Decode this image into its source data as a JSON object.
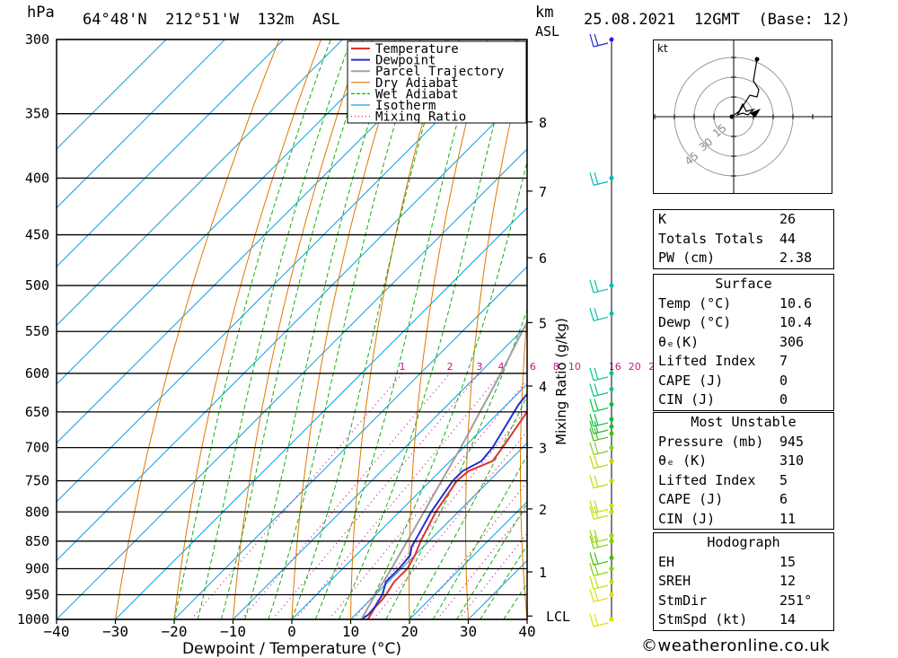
{
  "header": {
    "location": "64°48'N  212°51'W  132m  ASL",
    "datetime": "25.08.2021  12GMT  (Base: 12)",
    "hpa_unit": "hPa",
    "km_unit": "km",
    "asl_unit": "ASL"
  },
  "chart_data": {
    "type": "line",
    "xlabel": "Dewpoint / Temperature (°C)",
    "mixing_axis_label": "Mixing Ratio (g/kg)",
    "xlim": [
      -40,
      40
    ],
    "x_ticks": [
      "−40",
      "−30",
      "−20",
      "−10",
      "0",
      "10",
      "20",
      "30",
      "40"
    ],
    "pressure_ticks": [
      300,
      350,
      400,
      450,
      500,
      550,
      600,
      650,
      700,
      750,
      800,
      850,
      900,
      950,
      1000
    ],
    "km_ticks": [
      {
        "km": "1",
        "p": 906
      },
      {
        "km": "2",
        "p": 795
      },
      {
        "km": "3",
        "p": 700
      },
      {
        "km": "4",
        "p": 616
      },
      {
        "km": "5",
        "p": 540
      },
      {
        "km": "6",
        "p": 472
      },
      {
        "km": "7",
        "p": 411
      },
      {
        "km": "8",
        "p": 356
      }
    ],
    "lcl_label": "LCL",
    "lcl_pressure": 993,
    "mixing_ratio_labels": [
      "1",
      "2",
      "3",
      "4",
      "6",
      "8",
      "10",
      "16",
      "20",
      "25"
    ],
    "legend": [
      "Temperature",
      "Dewpoint",
      "Parcel Trajectory",
      "Dry Adiabat",
      "Wet Adiabat",
      "Isotherm",
      "Mixing Ratio"
    ],
    "colors": {
      "temperature": "#e23030",
      "dewpoint": "#2030d0",
      "parcel": "#a0a0a0",
      "dry_adiabat": "#e07800",
      "wet_adiabat": "#10b010",
      "isotherm": "#10a0e0",
      "mixing_ratio": "#d0108a"
    },
    "series": [
      {
        "name": "Temperature",
        "points": [
          [
            1000,
            12.9
          ],
          [
            990,
            12.6
          ],
          [
            975,
            12.1
          ],
          [
            960,
            12.0
          ],
          [
            950,
            11.8
          ],
          [
            925,
            11.0
          ],
          [
            900,
            11.0
          ],
          [
            875,
            10.0
          ],
          [
            850,
            8.6
          ],
          [
            800,
            6.2
          ],
          [
            750,
            4.5
          ],
          [
            735,
            4.8
          ],
          [
            720,
            7.2
          ],
          [
            700,
            6.6
          ],
          [
            650,
            4.7
          ],
          [
            600,
            2.0
          ],
          [
            580,
            0.3
          ],
          [
            575,
            1.2
          ],
          [
            560,
            1.8
          ],
          [
            550,
            1.0
          ],
          [
            500,
            -2.3
          ],
          [
            480,
            -3.5
          ],
          [
            450,
            -6.0
          ],
          [
            430,
            -8.0
          ],
          [
            415,
            -9.6
          ],
          [
            400,
            -9.6
          ],
          [
            380,
            -11.5
          ],
          [
            350,
            -15.0
          ],
          [
            320,
            -19.0
          ],
          [
            300,
            -21.0
          ]
        ]
      },
      {
        "name": "Dewpoint",
        "points": [
          [
            1000,
            11.8
          ],
          [
            990,
            12.2
          ],
          [
            975,
            12.0
          ],
          [
            960,
            11.5
          ],
          [
            950,
            11.2
          ],
          [
            925,
            9.6
          ],
          [
            900,
            9.6
          ],
          [
            875,
            9.2
          ],
          [
            860,
            8.0
          ],
          [
            850,
            7.6
          ],
          [
            800,
            5.4
          ],
          [
            750,
            3.8
          ],
          [
            735,
            3.8
          ],
          [
            720,
            5.3
          ],
          [
            700,
            4.9
          ],
          [
            660,
            3.0
          ],
          [
            640,
            2.0
          ],
          [
            620,
            1.5
          ],
          [
            600,
            0.4
          ],
          [
            595,
            1.0
          ],
          [
            580,
            -0.5
          ],
          [
            570,
            -2.0
          ],
          [
            560,
            -0.2
          ],
          [
            550,
            -0.6
          ],
          [
            530,
            -0.5
          ],
          [
            500,
            -2.8
          ],
          [
            495,
            -6.0
          ],
          [
            490,
            -9.5
          ],
          [
            480,
            -6.5
          ],
          [
            470,
            -6.5
          ],
          [
            460,
            -6.0
          ],
          [
            440,
            -9.0
          ],
          [
            430,
            -10.0
          ],
          [
            420,
            -9.0
          ],
          [
            415,
            -11.0
          ],
          [
            400,
            -9.5
          ],
          [
            380,
            -10.0
          ],
          [
            365,
            -7.0
          ],
          [
            350,
            -9.5
          ],
          [
            340,
            -8.5
          ],
          [
            320,
            -9.0
          ],
          [
            315,
            -11.5
          ],
          [
            305,
            -12.5
          ],
          [
            300,
            -13.0
          ]
        ]
      },
      {
        "name": "Parcel Trajectory",
        "points": [
          [
            1000,
            11.8
          ],
          [
            950,
            10.0
          ],
          [
            900,
            8.3
          ],
          [
            850,
            6.3
          ],
          [
            800,
            4.2
          ],
          [
            750,
            1.9
          ],
          [
            700,
            -0.5
          ],
          [
            650,
            -3.3
          ],
          [
            600,
            -6.3
          ],
          [
            550,
            -9.8
          ],
          [
            500,
            -13.8
          ],
          [
            450,
            -18.5
          ],
          [
            400,
            -24.0
          ],
          [
            350,
            -31.0
          ],
          [
            300,
            -39.0
          ]
        ]
      }
    ],
    "wind_barbs": [
      {
        "p": 300,
        "color": "#2020e0"
      },
      {
        "p": 400,
        "color": "#00b8c8"
      },
      {
        "p": 500,
        "color": "#00c0b0"
      },
      {
        "p": 530,
        "color": "#00c0b0"
      },
      {
        "p": 600,
        "color": "#00c890"
      },
      {
        "p": 620,
        "color": "#00c890"
      },
      {
        "p": 640,
        "color": "#00c040"
      },
      {
        "p": 660,
        "color": "#00c040"
      },
      {
        "p": 670,
        "color": "#20c020"
      },
      {
        "p": 680,
        "color": "#40c020"
      },
      {
        "p": 700,
        "color": "#80d020"
      },
      {
        "p": 720,
        "color": "#c0d800"
      },
      {
        "p": 750,
        "color": "#c0e000"
      },
      {
        "p": 790,
        "color": "#c0e000"
      },
      {
        "p": 800,
        "color": "#c0e000"
      },
      {
        "p": 840,
        "color": "#a0d800"
      },
      {
        "p": 850,
        "color": "#80d000"
      },
      {
        "p": 880,
        "color": "#40c000"
      },
      {
        "p": 900,
        "color": "#80d000"
      },
      {
        "p": 925,
        "color": "#c0e000"
      },
      {
        "p": 950,
        "color": "#e0e000"
      },
      {
        "p": 1000,
        "color": "#e0e000"
      }
    ]
  },
  "hodograph": {
    "unit_label": "kt",
    "ring_labels": [
      "15",
      "30",
      "45"
    ]
  },
  "indices": [
    {
      "label": "K",
      "value": "26"
    },
    {
      "label": "Totals Totals",
      "value": "44"
    },
    {
      "label": "PW (cm)",
      "value": "2.38"
    }
  ],
  "surface": {
    "title": "Surface",
    "rows": [
      {
        "label": "Temp (°C)",
        "value": "10.6"
      },
      {
        "label": "Dewp (°C)",
        "value": "10.4"
      },
      {
        "label": "θₑ(K)",
        "value": "306"
      },
      {
        "label": "Lifted Index",
        "value": "7"
      },
      {
        "label": "CAPE (J)",
        "value": "0"
      },
      {
        "label": "CIN (J)",
        "value": "0"
      }
    ]
  },
  "most_unstable": {
    "title": "Most Unstable",
    "rows": [
      {
        "label": "Pressure (mb)",
        "value": "945"
      },
      {
        "label": "θₑ (K)",
        "value": "310"
      },
      {
        "label": "Lifted Index",
        "value": "5"
      },
      {
        "label": "CAPE (J)",
        "value": "6"
      },
      {
        "label": "CIN (J)",
        "value": "11"
      }
    ]
  },
  "hodograph_table": {
    "title": "Hodograph",
    "rows": [
      {
        "label": "EH",
        "value": "15"
      },
      {
        "label": "SREH",
        "value": "12"
      },
      {
        "label": "StmDir",
        "value": "251°"
      },
      {
        "label": "StmSpd (kt)",
        "value": "14"
      }
    ]
  },
  "credit": "©weatheronline.co.uk"
}
